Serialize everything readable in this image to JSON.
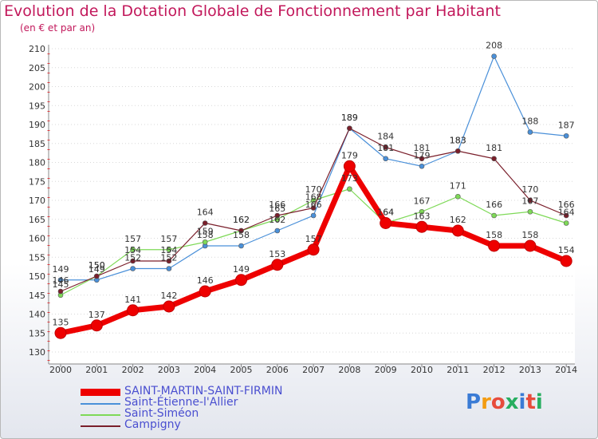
{
  "title": "Evolution de la Dotation Globale de Fonctionnement par Habitant",
  "subtitle": "(en € et par an)",
  "logo": {
    "text": "Proxiti",
    "colors": [
      "#3a7bd5",
      "#f39c12",
      "#e74c3c",
      "#27ae60",
      "#3a7bd5",
      "#e74c3c",
      "#27ae60"
    ]
  },
  "chart_data": {
    "type": "line",
    "title": "Evolution de la Dotation Globale de Fonctionnement par Habitant",
    "ylabel": "(en € et par an)",
    "xlabel": "",
    "ylim": [
      130,
      210
    ],
    "yticks": [
      130,
      135,
      140,
      145,
      150,
      155,
      160,
      165,
      170,
      175,
      180,
      185,
      190,
      195,
      200,
      205,
      210
    ],
    "categories": [
      "2000",
      "2001",
      "2002",
      "2003",
      "2004",
      "2005",
      "2006",
      "2007",
      "2008",
      "2009",
      "2010",
      "2011",
      "2012",
      "2013",
      "2014"
    ],
    "series": [
      {
        "name": "SAINT-MARTIN-SAINT-FIRMIN",
        "color": "#ee0000",
        "values": [
          135,
          137,
          141,
          142,
          146,
          149,
          153,
          157,
          179,
          164,
          163,
          162,
          158,
          158,
          154
        ]
      },
      {
        "name": "Saint-Étienne-l'Allier",
        "color": "#4a90d9",
        "values": [
          149,
          149,
          152,
          152,
          158,
          158,
          162,
          166,
          189,
          181,
          179,
          183,
          208,
          188,
          187
        ]
      },
      {
        "name": "Saint-Siméon",
        "color": "#7ed957",
        "values": [
          145,
          150,
          157,
          157,
          159,
          162,
          165,
          170,
          173,
          164,
          167,
          171,
          166,
          167,
          164
        ]
      },
      {
        "name": "Campigny",
        "color": "#7a1f2b",
        "values": [
          146,
          150,
          154,
          154,
          164,
          162,
          166,
          168,
          189,
          184,
          181,
          183,
          181,
          170,
          166
        ]
      }
    ],
    "data_labels": {
      "SAINT-MARTIN-SAINT-FIRMIN": [
        "135",
        "137",
        "141",
        "142",
        "146",
        "149",
        "153",
        "157",
        "179",
        "164",
        "163",
        "162",
        "158",
        "158",
        "154"
      ],
      "Saint-Étienne-l'Allier": [
        "149",
        "149",
        "152",
        "152",
        "158",
        "158",
        "162",
        "166",
        "189",
        "181",
        "179",
        "183",
        "208",
        "188",
        "187"
      ],
      "Saint-Siméon": [
        "145",
        "150",
        "157",
        "157",
        "159",
        "162",
        "165",
        "170",
        "173",
        "164",
        "167",
        "171",
        "166",
        "167",
        "164"
      ],
      "Campigny": [
        "146",
        "150",
        "154",
        "154",
        "164",
        "162",
        "166",
        "168",
        "189",
        "184",
        "181",
        "183",
        "181",
        "170",
        "166"
      ]
    },
    "grid": "horizontal dotted",
    "legend": "bottom-left"
  }
}
